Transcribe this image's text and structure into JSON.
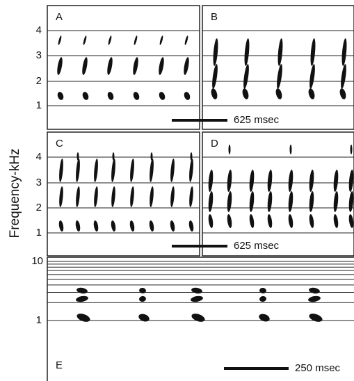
{
  "y_axis_label": "Frequency-kHz",
  "panels": [
    {
      "label": "A",
      "yticks": [
        "1",
        "2",
        "3",
        "4"
      ]
    },
    {
      "label": "B"
    },
    {
      "label": "C",
      "yticks": [
        "1",
        "2",
        "3",
        "4"
      ]
    },
    {
      "label": "D"
    },
    {
      "label": "E",
      "yticks": [
        "1",
        "10"
      ]
    }
  ],
  "scale_bars": [
    "625 msec",
    "625 msec",
    "250 msec"
  ]
}
